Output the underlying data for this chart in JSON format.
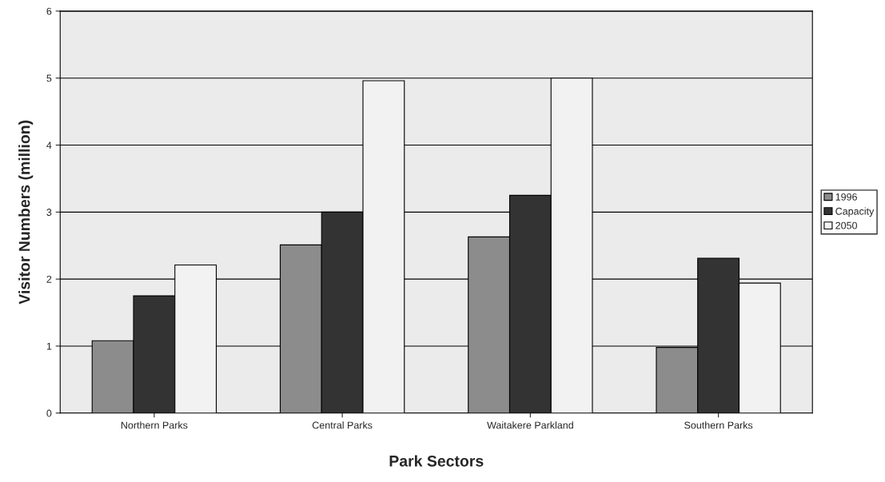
{
  "chart_data": {
    "type": "bar",
    "xlabel": "Park Sectors",
    "ylabel": "Visitor Numbers (million)",
    "categories": [
      "Northern Parks",
      "Central Parks",
      "Waitakere Parkland",
      "Southern Parks"
    ],
    "series": [
      {
        "name": "1996",
        "color": "#8c8c8c",
        "values": [
          1.08,
          2.51,
          2.63,
          0.98
        ]
      },
      {
        "name": "Capacity",
        "color": "#333333",
        "values": [
          1.75,
          3.0,
          3.25,
          2.31
        ]
      },
      {
        "name": "2050",
        "color": "#f2f2f2",
        "values": [
          2.21,
          4.96,
          5.0,
          1.94
        ]
      }
    ],
    "ylim": [
      0,
      6
    ],
    "yticks": [
      0,
      1,
      2,
      3,
      4,
      5,
      6
    ],
    "grid": "y",
    "legend": "right"
  }
}
